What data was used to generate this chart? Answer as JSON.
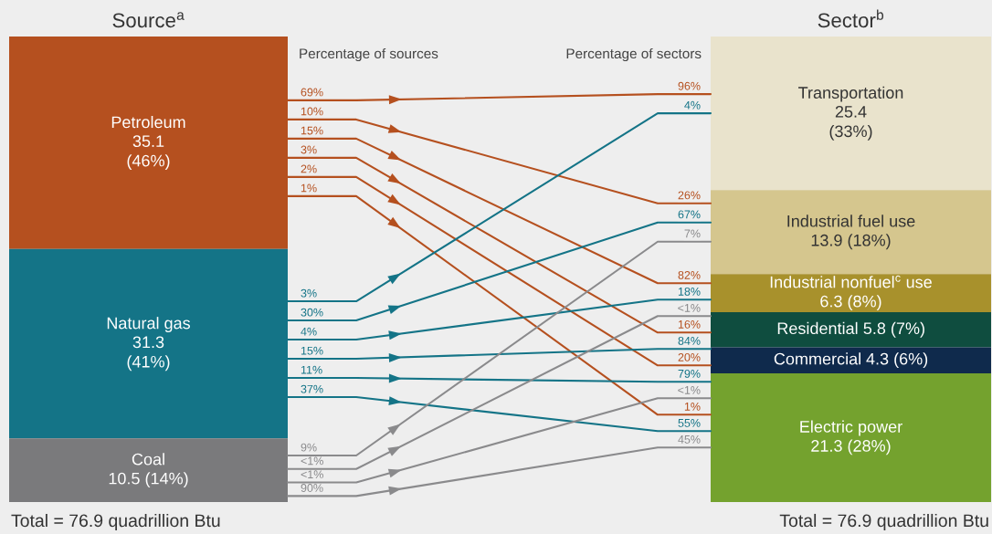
{
  "chart_data": {
    "type": "other",
    "data_labels": true,
    "categories": [
      "Source$^{a}$",
      "Sector$^{b}$"
    ],
    "annotations": [
      "Percentage of sources",
      "Percentage of sectors",
      "Total = 76.9 quadrillion Btu",
      "Total = 76.9 quadrillion Btu"
    ],
    "series": [
      {
        "name": "Petroleum",
        "color": "#b5501f",
        "values": [
          35.1,
          null
        ],
        "value_labels": [
          "35.1\n(46%)",
          null
        ]
      },
      {
        "name": "Natural gas",
        "color": "#147487",
        "values": [
          31.3,
          null
        ],
        "value_labels": [
          "31.3\n(41%)",
          null
        ]
      },
      {
        "name": "Coal",
        "color": "#7a7a7c",
        "values": [
          10.5,
          null
        ],
        "value_labels": [
          "10.5 (14%)",
          null
        ]
      },
      {
        "name": "Transportation",
        "color": "#e9e3cc",
        "values": [
          null,
          25.4
        ],
        "value_labels": [
          null,
          "25.4\n(33%)"
        ]
      },
      {
        "name": "Industrial fuel use",
        "color": "#d5c68e",
        "values": [
          null,
          13.9
        ],
        "value_labels": [
          null,
          "13.9 (18%)"
        ]
      },
      {
        "name": "Industrial nonfuel$^{c}$ use",
        "color": "#a8912c",
        "values": [
          null,
          6.3
        ],
        "value_labels": [
          null,
          "6.3 (8%)"
        ]
      },
      {
        "name": "Residential",
        "color": "#0f4d3f",
        "values": [
          null,
          5.8
        ],
        "value_labels": [
          null,
          "5.8 (7%)"
        ]
      },
      {
        "name": "Commercial",
        "color": "#0f2a4c",
        "values": [
          null,
          4.3
        ],
        "value_labels": [
          null,
          "4.3 (6%)"
        ]
      },
      {
        "name": "Electric power",
        "color": "#74a22e",
        "values": [
          null,
          21.3
        ],
        "value_labels": [
          null,
          "21.3 (28%)"
        ]
      }
    ],
    "cell_labels": [
      [
        [
          "69%",
          "96%"
        ],
        [
          "10%",
          "26%"
        ],
        [
          "15%",
          "82%"
        ],
        [
          "3%",
          "16%"
        ],
        [
          "2%",
          "20%"
        ],
        [
          "1%",
          "1%"
        ]
      ],
      [
        [
          "3%",
          "4%"
        ],
        [
          "30%",
          "67%"
        ],
        [
          "4%",
          "18%"
        ],
        [
          "15%",
          "84%"
        ],
        [
          "11%",
          "79%"
        ],
        [
          "37%",
          "55%"
        ]
      ],
      [
        null,
        [
          "9%",
          "7%"
        ],
        [
          "<1%",
          "<1%"
        ],
        null,
        [
          "<1%",
          "<1%"
        ],
        [
          "90%",
          "45%"
        ]
      ]
    ]
  }
}
